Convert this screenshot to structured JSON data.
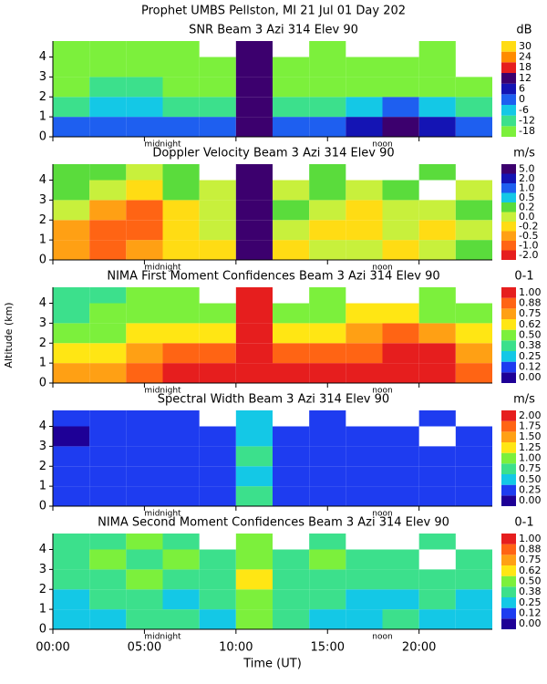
{
  "title": "Prophet  UMBS Pellston, MI  21 Jul 01 Day 202",
  "chart_data": [
    {
      "type": "heatmap",
      "title": "SNR Beam 3 Azi 314 Elev 90",
      "colorbar_label": "dB",
      "x": [
        0,
        2,
        4,
        6,
        8,
        10,
        12,
        14,
        16,
        18,
        20,
        22
      ],
      "y": [
        0,
        1,
        2,
        3,
        4
      ],
      "xlim": [
        0,
        24
      ],
      "ylim": [
        0,
        4.8
      ],
      "yticks": [
        0,
        1,
        2,
        3,
        4
      ],
      "annotations": [
        {
          "text": "midnight",
          "x": 6
        },
        {
          "text": "noon",
          "x": 18
        }
      ],
      "colorbar_ticks": [
        -18,
        -12,
        -6,
        0,
        6,
        12,
        18,
        24,
        30
      ],
      "colorbar_colors": [
        "#7cf03c",
        "#3ce08c",
        "#14c8e6",
        "#1e5ff0",
        "#1414b4",
        "#3c006e",
        "#e61e1e",
        "#ff8c00",
        "#ffdc14"
      ],
      "values": [
        [
          3,
          3,
          3,
          0,
          5,
          14,
          3,
          3,
          10,
          12,
          10,
          3
        ],
        [
          -8,
          -6,
          -6,
          -9,
          -10,
          14,
          -10,
          -8,
          -3,
          0,
          -3,
          -10
        ],
        [
          -14,
          -12,
          -12,
          -14,
          -15,
          13,
          -15,
          -14,
          -15,
          -14,
          -14,
          -15
        ],
        [
          -16,
          -15,
          -16,
          -17,
          -17,
          12,
          -17,
          -17,
          -17,
          -17,
          -17,
          null
        ],
        [
          -17,
          -17,
          -17,
          -17,
          null,
          12,
          null,
          -18,
          null,
          null,
          -17,
          null
        ]
      ]
    },
    {
      "type": "heatmap",
      "title": "Doppler Velocity Beam 3 Azi 314 Elev 90",
      "colorbar_label": "m/s",
      "x": [
        0,
        2,
        4,
        6,
        8,
        10,
        12,
        14,
        16,
        18,
        20,
        22
      ],
      "y": [
        0,
        1,
        2,
        3,
        4
      ],
      "xlim": [
        0,
        24
      ],
      "ylim": [
        0,
        4.8
      ],
      "yticks": [
        0,
        1,
        2,
        3,
        4
      ],
      "annotations": [
        {
          "text": "midnight",
          "x": 6
        },
        {
          "text": "noon",
          "x": 18
        }
      ],
      "colorbar_ticks": [
        {
          "value": -2,
          "label": "-2.0"
        },
        {
          "value": -1,
          "label": "-1.0"
        },
        -0.5,
        -0.2,
        {
          "value": 0,
          "label": "0.0"
        },
        0.2,
        0.5,
        {
          "value": 1,
          "label": "1.0"
        },
        {
          "value": 2,
          "label": "2.0"
        },
        {
          "value": 5,
          "label": "5.0"
        }
      ],
      "colorbar_colors": [
        "#e61e1e",
        "#ff6414",
        "#ffa014",
        "#ffdc14",
        "#c8f03c",
        "#5adc3c",
        "#14c8e6",
        "#1e5ff0",
        "#1414b4",
        "#3c006e"
      ],
      "values": [
        [
          -0.5,
          -1,
          -0.5,
          -0.2,
          -0.2,
          5,
          -0.2,
          0,
          0,
          -0.2,
          0,
          0.2
        ],
        [
          -0.5,
          -1,
          -1,
          -0.2,
          0,
          5,
          0,
          -0.2,
          -0.2,
          0,
          -0.2,
          0
        ],
        [
          0,
          -0.5,
          -1,
          -0.2,
          0,
          5,
          0.2,
          0,
          -0.2,
          0,
          0,
          0.2
        ],
        [
          0.2,
          0,
          -0.2,
          0.2,
          0,
          5,
          0,
          0.2,
          0,
          0.2,
          null,
          0
        ],
        [
          0.2,
          0.2,
          0,
          0.2,
          null,
          5,
          null,
          0.2,
          null,
          null,
          0.2,
          null
        ]
      ]
    },
    {
      "type": "heatmap",
      "title": "NIMA First Moment Confidences Beam 3 Azi 314 Elev 90",
      "colorbar_label": "0-1",
      "y_label": "Altitude (km)",
      "x": [
        0,
        2,
        4,
        6,
        8,
        10,
        12,
        14,
        16,
        18,
        20,
        22
      ],
      "y": [
        0,
        1,
        2,
        3,
        4
      ],
      "xlim": [
        0,
        24
      ],
      "ylim": [
        0,
        4.8
      ],
      "yticks": [
        0,
        1,
        2,
        3,
        4
      ],
      "annotations": [
        {
          "text": "midnight",
          "x": 6
        },
        {
          "text": "noon",
          "x": 18
        }
      ],
      "colorbar_ticks": [
        {
          "value": 0,
          "label": "0.00"
        },
        0.12,
        0.25,
        0.38,
        {
          "value": 0.5,
          "label": "0.50"
        },
        0.62,
        0.75,
        0.88,
        {
          "value": 1,
          "label": "1.00"
        }
      ],
      "colorbar_colors": [
        "#1e0096",
        "#1e3cf0",
        "#14c8e6",
        "#3ce08c",
        "#7cf03c",
        "#ffe614",
        "#ffa014",
        "#ff6414",
        "#e61e1e"
      ],
      "values": [
        [
          0.75,
          0.75,
          0.88,
          1,
          1,
          1,
          1,
          1,
          1,
          1,
          1,
          0.88
        ],
        [
          0.62,
          0.62,
          0.75,
          0.88,
          0.88,
          1,
          0.88,
          0.88,
          0.88,
          1,
          1,
          0.75
        ],
        [
          0.5,
          0.5,
          0.62,
          0.62,
          0.62,
          1,
          0.62,
          0.62,
          0.75,
          0.88,
          0.75,
          0.62
        ],
        [
          0.38,
          0.5,
          0.5,
          0.5,
          0.5,
          1,
          0.5,
          0.5,
          0.62,
          0.62,
          0.5,
          0.5
        ],
        [
          0.38,
          0.38,
          0.5,
          0.5,
          null,
          1,
          null,
          0.5,
          null,
          null,
          0.5,
          null
        ]
      ]
    },
    {
      "type": "heatmap",
      "title": "Spectral Width Beam 3 Azi 314 Elev 90",
      "colorbar_label": "m/s",
      "x": [
        0,
        2,
        4,
        6,
        8,
        10,
        12,
        14,
        16,
        18,
        20,
        22
      ],
      "y": [
        0,
        1,
        2,
        3,
        4
      ],
      "xlim": [
        0,
        24
      ],
      "ylim": [
        0,
        4.8
      ],
      "yticks": [
        0,
        1,
        2,
        3,
        4
      ],
      "annotations": [
        {
          "text": "midnight",
          "x": 6
        },
        {
          "text": "noon",
          "x": 18
        }
      ],
      "colorbar_ticks": [
        {
          "value": 0,
          "label": "0.00"
        },
        0.25,
        {
          "value": 0.5,
          "label": "0.50"
        },
        0.75,
        {
          "value": 1,
          "label": "1.00"
        },
        1.25,
        {
          "value": 1.5,
          "label": "1.50"
        },
        1.75,
        {
          "value": 2,
          "label": "2.00"
        }
      ],
      "colorbar_colors": [
        "#1e0096",
        "#1e3cf0",
        "#14c8e6",
        "#3ce08c",
        "#7cf03c",
        "#ffe614",
        "#ffa014",
        "#ff6414",
        "#e61e1e"
      ],
      "values": [
        [
          0.25,
          0.25,
          0.25,
          0.25,
          0.25,
          0.75,
          0.25,
          0.25,
          0.25,
          0.25,
          0.25,
          0.25
        ],
        [
          0.25,
          0.25,
          0.25,
          0.25,
          0.25,
          0.5,
          0.25,
          0.25,
          0.25,
          0.25,
          0.25,
          0.25
        ],
        [
          0.25,
          0.25,
          0.25,
          0.25,
          0.25,
          0.75,
          0.25,
          0.25,
          0.25,
          0.25,
          0.25,
          0.25
        ],
        [
          0,
          0.25,
          0.25,
          0.25,
          0.25,
          0.5,
          0.25,
          0.25,
          0.25,
          0.25,
          null,
          0.25
        ],
        [
          0.25,
          0.25,
          0.25,
          0.25,
          null,
          0.5,
          null,
          0.25,
          null,
          null,
          0.25,
          null
        ]
      ]
    },
    {
      "type": "heatmap",
      "title": "NIMA Second Moment Confidences Beam 3 Azi 314 Elev 90",
      "colorbar_label": "0-1",
      "x_label": "Time (UT)",
      "x": [
        0,
        2,
        4,
        6,
        8,
        10,
        12,
        14,
        16,
        18,
        20,
        22
      ],
      "y": [
        0,
        1,
        2,
        3,
        4
      ],
      "xlim": [
        0,
        24
      ],
      "ylim": [
        0,
        4.8
      ],
      "yticks": [
        0,
        1,
        2,
        3,
        4
      ],
      "xticks": [
        {
          "value": 0,
          "label": "00:00"
        },
        {
          "value": 5,
          "label": "05:00"
        },
        {
          "value": 10,
          "label": "10:00"
        },
        {
          "value": 15,
          "label": "15:00"
        },
        {
          "value": 20,
          "label": "20:00"
        }
      ],
      "annotations": [
        {
          "text": "midnight",
          "x": 6
        },
        {
          "text": "noon",
          "x": 18
        }
      ],
      "colorbar_ticks": [
        {
          "value": 0,
          "label": "0.00"
        },
        0.12,
        0.25,
        0.38,
        {
          "value": 0.5,
          "label": "0.50"
        },
        0.62,
        0.75,
        0.88,
        {
          "value": 1,
          "label": "1.00"
        }
      ],
      "colorbar_colors": [
        "#1e0096",
        "#1e3cf0",
        "#14c8e6",
        "#3ce08c",
        "#7cf03c",
        "#ffe614",
        "#ffa014",
        "#ff6414",
        "#e61e1e"
      ],
      "values": [
        [
          0.25,
          0.25,
          0.38,
          0.38,
          0.25,
          0.5,
          0.38,
          0.25,
          0.25,
          0.38,
          0.25,
          0.25
        ],
        [
          0.25,
          0.38,
          0.38,
          0.25,
          0.38,
          0.5,
          0.38,
          0.38,
          0.25,
          0.25,
          0.38,
          0.25
        ],
        [
          0.38,
          0.38,
          0.5,
          0.38,
          0.38,
          0.62,
          0.38,
          0.38,
          0.38,
          0.38,
          0.38,
          0.38
        ],
        [
          0.38,
          0.5,
          0.38,
          0.5,
          0.38,
          0.5,
          0.38,
          0.5,
          0.38,
          0.38,
          null,
          0.38
        ],
        [
          0.38,
          0.38,
          0.5,
          0.38,
          null,
          0.5,
          null,
          0.38,
          null,
          null,
          0.38,
          null
        ]
      ]
    }
  ]
}
